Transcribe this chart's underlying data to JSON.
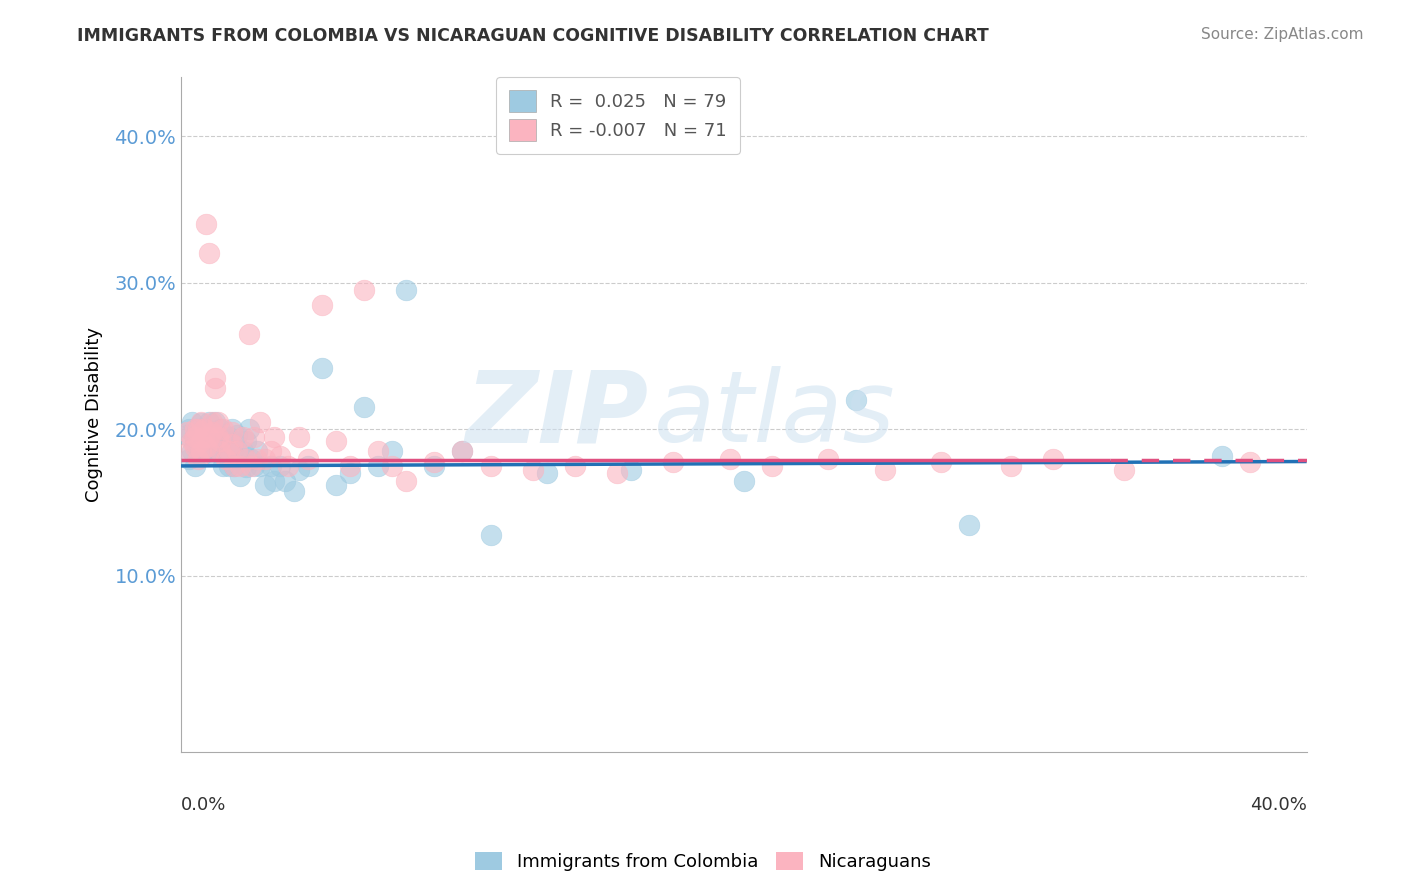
{
  "title": "IMMIGRANTS FROM COLOMBIA VS NICARAGUAN COGNITIVE DISABILITY CORRELATION CHART",
  "source": "Source: ZipAtlas.com",
  "ylabel": "Cognitive Disability",
  "ytick_labels": [
    "10.0%",
    "20.0%",
    "30.0%",
    "40.0%"
  ],
  "ytick_values": [
    0.1,
    0.2,
    0.3,
    0.4
  ],
  "xlim": [
    0.0,
    0.4
  ],
  "ylim": [
    -0.02,
    0.44
  ],
  "color_blue": "#9ecae1",
  "color_pink": "#fbb4c0",
  "line_color_blue": "#2171b5",
  "line_color_pink": "#e05080",
  "colombia_x": [
    0.002,
    0.003,
    0.003,
    0.004,
    0.004,
    0.005,
    0.005,
    0.005,
    0.006,
    0.006,
    0.006,
    0.007,
    0.007,
    0.007,
    0.008,
    0.008,
    0.008,
    0.008,
    0.009,
    0.009,
    0.009,
    0.01,
    0.01,
    0.01,
    0.01,
    0.011,
    0.011,
    0.012,
    0.012,
    0.012,
    0.013,
    0.013,
    0.014,
    0.014,
    0.015,
    0.015,
    0.016,
    0.016,
    0.017,
    0.017,
    0.018,
    0.018,
    0.019,
    0.019,
    0.02,
    0.02,
    0.021,
    0.022,
    0.023,
    0.023,
    0.024,
    0.025,
    0.026,
    0.027,
    0.028,
    0.03,
    0.032,
    0.033,
    0.035,
    0.037,
    0.04,
    0.042,
    0.045,
    0.05,
    0.055,
    0.06,
    0.065,
    0.07,
    0.075,
    0.08,
    0.09,
    0.1,
    0.11,
    0.13,
    0.16,
    0.2,
    0.24,
    0.28,
    0.37
  ],
  "colombia_y": [
    0.196,
    0.18,
    0.2,
    0.185,
    0.205,
    0.175,
    0.19,
    0.195,
    0.188,
    0.2,
    0.195,
    0.182,
    0.197,
    0.204,
    0.195,
    0.185,
    0.2,
    0.193,
    0.19,
    0.2,
    0.195,
    0.185,
    0.192,
    0.198,
    0.205,
    0.188,
    0.195,
    0.182,
    0.192,
    0.205,
    0.19,
    0.185,
    0.195,
    0.2,
    0.188,
    0.175,
    0.192,
    0.185,
    0.195,
    0.175,
    0.2,
    0.185,
    0.175,
    0.192,
    0.185,
    0.196,
    0.168,
    0.185,
    0.174,
    0.192,
    0.2,
    0.18,
    0.175,
    0.185,
    0.175,
    0.162,
    0.175,
    0.165,
    0.175,
    0.165,
    0.158,
    0.172,
    0.175,
    0.242,
    0.162,
    0.17,
    0.215,
    0.175,
    0.185,
    0.295,
    0.175,
    0.185,
    0.128,
    0.17,
    0.172,
    0.165,
    0.22,
    0.135,
    0.182
  ],
  "nicaragua_x": [
    0.002,
    0.003,
    0.004,
    0.005,
    0.005,
    0.005,
    0.006,
    0.006,
    0.007,
    0.007,
    0.007,
    0.008,
    0.008,
    0.009,
    0.009,
    0.01,
    0.01,
    0.01,
    0.011,
    0.011,
    0.012,
    0.012,
    0.013,
    0.013,
    0.014,
    0.014,
    0.015,
    0.016,
    0.017,
    0.018,
    0.018,
    0.019,
    0.02,
    0.021,
    0.022,
    0.023,
    0.024,
    0.025,
    0.026,
    0.027,
    0.028,
    0.03,
    0.032,
    0.033,
    0.035,
    0.038,
    0.042,
    0.045,
    0.05,
    0.055,
    0.06,
    0.065,
    0.07,
    0.075,
    0.08,
    0.09,
    0.1,
    0.11,
    0.125,
    0.14,
    0.155,
    0.175,
    0.195,
    0.21,
    0.23,
    0.25,
    0.27,
    0.295,
    0.31,
    0.335,
    0.38
  ],
  "nicaragua_y": [
    0.198,
    0.185,
    0.192,
    0.2,
    0.188,
    0.195,
    0.18,
    0.2,
    0.192,
    0.205,
    0.185,
    0.195,
    0.2,
    0.188,
    0.34,
    0.195,
    0.185,
    0.32,
    0.198,
    0.205,
    0.228,
    0.235,
    0.195,
    0.205,
    0.185,
    0.192,
    0.2,
    0.18,
    0.185,
    0.198,
    0.19,
    0.175,
    0.185,
    0.175,
    0.195,
    0.18,
    0.265,
    0.175,
    0.195,
    0.18,
    0.205,
    0.18,
    0.185,
    0.195,
    0.182,
    0.175,
    0.195,
    0.18,
    0.285,
    0.192,
    0.175,
    0.295,
    0.185,
    0.175,
    0.165,
    0.178,
    0.185,
    0.175,
    0.172,
    0.175,
    0.17,
    0.178,
    0.18,
    0.175,
    0.18,
    0.172,
    0.178,
    0.175,
    0.18,
    0.172,
    0.178
  ],
  "R_blue": 0.025,
  "R_pink": -0.007
}
